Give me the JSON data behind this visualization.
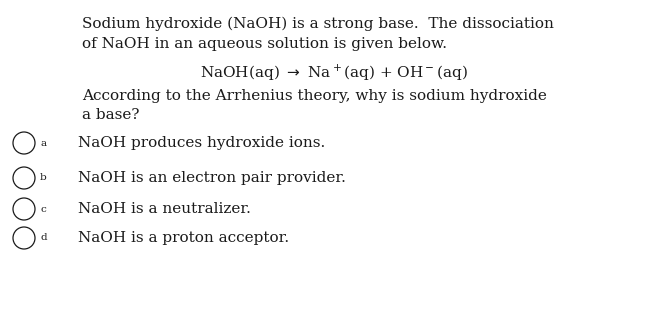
{
  "background_color": "#ffffff",
  "text_color": "#1a1a1a",
  "p1_line1": "Sodium hydroxide (NaOH) is a strong base.  The dissociation",
  "p1_line2": "of NaOH in an aqueous solution is given below.",
  "equation": "NaOH(aq) $\\rightarrow$ Na$^+$(aq) + OH$^-$(aq)",
  "p2_line1": "According to the Arrhenius theory, why is sodium hydroxide",
  "p2_line2": "a base?",
  "options": [
    {
      "label": "a",
      "text": "NaOH produces hydroxide ions."
    },
    {
      "label": "b",
      "text": "NaOH is an electron pair provider."
    },
    {
      "label": "c",
      "text": "NaOH is a neutralizer."
    },
    {
      "label": "d",
      "text": "NaOH is a proton acceptor."
    }
  ],
  "font_size_body": 11.0,
  "font_size_option": 11.0,
  "font_size_label": 7.5,
  "font_family": "DejaVu Serif",
  "fig_width": 6.68,
  "fig_height": 3.25,
  "dpi": 100
}
